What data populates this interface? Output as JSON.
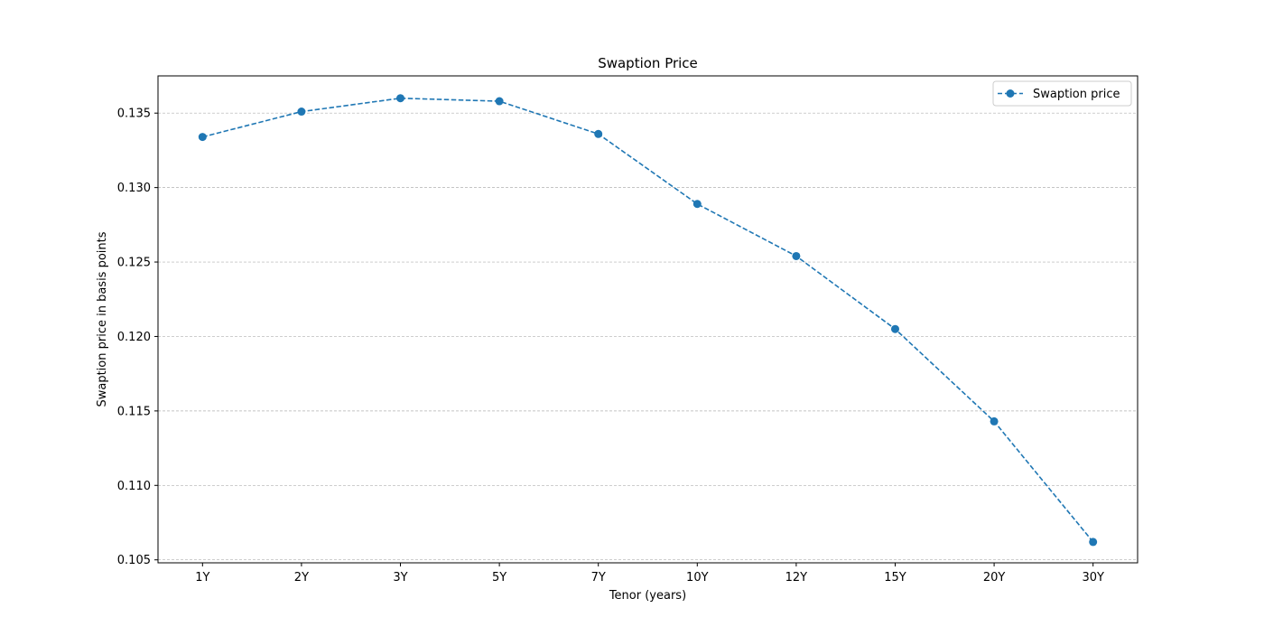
{
  "chart_data": {
    "type": "line",
    "title": "Swaption Price",
    "xlabel": "Tenor (years)",
    "ylabel": "Swaption price in basis points",
    "categories": [
      "1Y",
      "2Y",
      "3Y",
      "5Y",
      "7Y",
      "10Y",
      "12Y",
      "15Y",
      "20Y",
      "30Y"
    ],
    "series": [
      {
        "name": "Swaption price",
        "values": [
          0.1334,
          0.1351,
          0.136,
          0.1358,
          0.1336,
          0.1289,
          0.1254,
          0.1205,
          0.1143,
          0.1062
        ],
        "color": "#1f77b4",
        "line_style": "dashed",
        "marker": "circle"
      }
    ],
    "ylim": [
      0.1048,
      0.1375
    ],
    "yticks": [
      0.105,
      0.11,
      0.115,
      0.12,
      0.125,
      0.13,
      0.135
    ],
    "ytick_labels": [
      "0.105",
      "0.110",
      "0.115",
      "0.120",
      "0.125",
      "0.130",
      "0.135"
    ],
    "grid": "horizontal dashed",
    "legend_position": "top-right"
  }
}
